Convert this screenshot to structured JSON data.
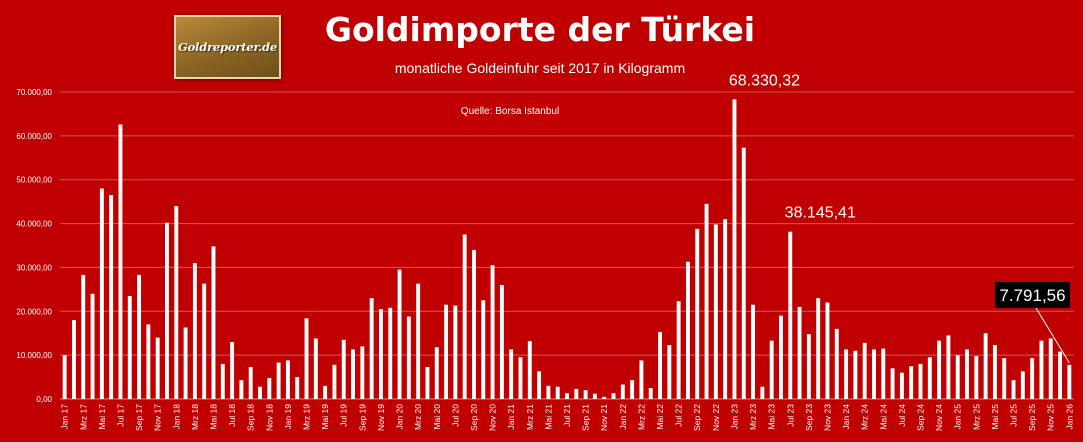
{
  "header": {
    "logo_text": "Goldreporter.de",
    "title": "Goldimporte der Türkei",
    "subtitle": "monatliche Goldeinfuhr seit 2017 in Kilogramm",
    "source": "Quelle: Borsa Istanbul"
  },
  "colors": {
    "background": "#c00000",
    "bars": "#ffffff",
    "grid": "#d95555",
    "callout_box": "#000000"
  },
  "chart_data": {
    "type": "bar",
    "title": "Goldimporte der Türkei",
    "subtitle": "monatliche Goldeinfuhr seit 2017 in Kilogramm",
    "xlabel": "",
    "ylabel": "",
    "ylim": [
      0,
      70000
    ],
    "y_ticks": [
      0,
      10000,
      20000,
      30000,
      40000,
      50000,
      60000,
      70000
    ],
    "y_tick_labels": [
      "0,00",
      "10.000,00",
      "20.000,00",
      "30.000,00",
      "40.000,00",
      "50.000,00",
      "60.000,00",
      "70.000,00"
    ],
    "grid": true,
    "categories": [
      "Jan 17",
      "Feb 17",
      "Mrz 17",
      "Apr 17",
      "Mai 17",
      "Jun 17",
      "Jul 17",
      "Aug 17",
      "Sep 17",
      "Okt 17",
      "Nov 17",
      "Dez 17",
      "Jan 18",
      "Feb 18",
      "Mrz 18",
      "Apr 18",
      "Mai 18",
      "Jun 18",
      "Jul 18",
      "Aug 18",
      "Sep 18",
      "Okt 18",
      "Nov 18",
      "Dez 18",
      "Jan 19",
      "Feb 19",
      "Mrz 19",
      "Apr 19",
      "Mai 19",
      "Jun 19",
      "Jul 19",
      "Aug 19",
      "Sep 19",
      "Okt 19",
      "Nov 19",
      "Dez 19",
      "Jan 20",
      "Feb 20",
      "Mrz 20",
      "Apr 20",
      "Mai 20",
      "Jun 20",
      "Jul 20",
      "Aug 20",
      "Sep 20",
      "Okt 20",
      "Nov 20",
      "Dez 20",
      "Jan 21",
      "Feb 21",
      "Mrz 21",
      "Apr 21",
      "Mai 21",
      "Jun 21",
      "Jul 21",
      "Aug 21",
      "Sep 21",
      "Okt 21",
      "Nov 21",
      "Dez 21",
      "Jan 22",
      "Feb 22",
      "Mrz 22",
      "Apr 22",
      "Mai 22",
      "Jun 22",
      "Jul 22",
      "Aug 22",
      "Sep 22",
      "Okt 22",
      "Nov 22",
      "Dez 22",
      "Jan 23",
      "Feb 23",
      "Mrz 23",
      "Apr 23",
      "Mai 23",
      "Jun 23",
      "Jul 23",
      "Aug 23",
      "Sep 23",
      "Okt 23",
      "Nov 23",
      "Dez 23",
      "Jan 24",
      "Feb 24",
      "Mrz 24",
      "Apr 24",
      "Mai 24",
      "Jun 24",
      "Jul 24",
      "Aug 24",
      "Sep 24",
      "Okt 24",
      "Nov 24",
      "Dez 24",
      "Jan 25",
      "Feb 25",
      "Mrz 25",
      "Apr 25",
      "Mai 25",
      "Jun 25",
      "Jul 25",
      "Aug 25",
      "Sep 25",
      "Okt 25",
      "Nov 25",
      "Dez 25",
      "Jan 26"
    ],
    "x_tick_labels_shown": [
      "Jan 17",
      "Mrz 17",
      "Mai 17",
      "Jul 17",
      "Sep 17",
      "Nov 17",
      "Jan 18",
      "Mrz 18",
      "Mai 18",
      "Jul 18",
      "Sep 18",
      "Nov 18",
      "Jan 19",
      "Mrz 19",
      "Mai 19",
      "Jul 19",
      "Sep 19",
      "Nov 19",
      "Jan 20",
      "Mrz 20",
      "Mai 20",
      "Jul 20",
      "Sep 20",
      "Nov 20",
      "Jan 21",
      "Mrz 21",
      "Mai 21",
      "Jul 21",
      "Sep 21",
      "Nov 21",
      "Jan 22",
      "Mrz 22",
      "Mai 22",
      "Jul 22",
      "Sep 22",
      "Nov 22",
      "Jan 23",
      "Mrz 23",
      "Mai 23",
      "Jul 23",
      "Sep 23",
      "Nov 23",
      "Jan 24",
      "Mrz 24",
      "Mai 24",
      "Jul 24",
      "Sep 24",
      "Nov 24",
      "Jan 25",
      "Mrz 25",
      "Mai 25",
      "Jul 25",
      "Sep 25",
      "Nov 25",
      "Jan 26"
    ],
    "values": [
      10000,
      18000,
      28300,
      24000,
      48000,
      46500,
      62600,
      23500,
      28300,
      17000,
      14000,
      40200,
      44000,
      16300,
      31000,
      26300,
      34800,
      8000,
      13000,
      4300,
      7300,
      2800,
      4800,
      8300,
      8800,
      5000,
      18400,
      13800,
      3000,
      7800,
      13500,
      11300,
      12000,
      23000,
      20500,
      20800,
      29500,
      18800,
      26300,
      7300,
      11800,
      21500,
      21300,
      37500,
      34000,
      22500,
      30500,
      26000,
      11300,
      9500,
      13200,
      6300,
      3000,
      2800,
      1300,
      2300,
      2000,
      1200,
      500,
      1300,
      3300,
      4300,
      8800,
      2500,
      15300,
      12300,
      22300,
      31300,
      38800,
      44500,
      39800,
      41000,
      68330.32,
      57300,
      21500,
      2800,
      13300,
      19000,
      38145.41,
      21000,
      14800,
      23000,
      22000,
      16000,
      11300,
      11000,
      12800,
      11300,
      11500,
      7000,
      6000,
      7500,
      8000,
      9500,
      13300,
      14500,
      10000,
      11300,
      9800,
      15000,
      12300,
      9300,
      4300,
      6300,
      9300,
      13300,
      13800,
      10800,
      7791.56
    ],
    "annotations": [
      {
        "category": "Jan 23",
        "value": 68330.32,
        "text": "68.330,32"
      },
      {
        "category": "Jul 23",
        "value": 38145.41,
        "text": "38.145,41"
      },
      {
        "category": "Jan 26",
        "value": 7791.56,
        "text": "7.791,56",
        "boxed": true
      }
    ]
  }
}
